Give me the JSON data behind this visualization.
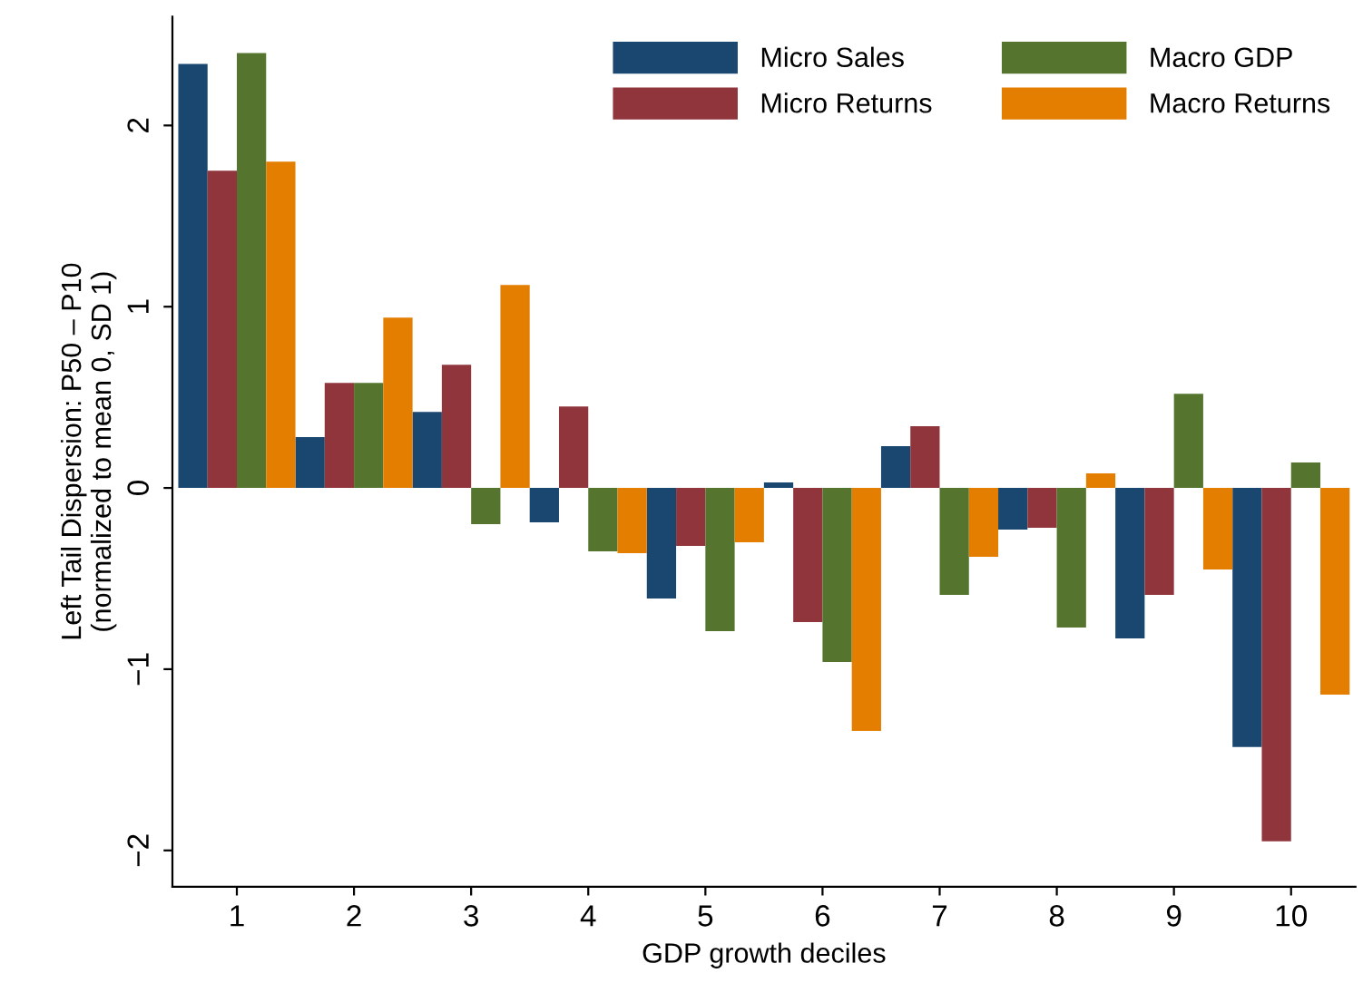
{
  "chart_data": {
    "type": "bar",
    "xlabel": "GDP growth deciles",
    "ylabel": "Left Tail Dispersion: P50 – P10\n(normalized to mean 0, SD 1)",
    "categories": [
      "1",
      "2",
      "3",
      "4",
      "5",
      "6",
      "7",
      "8",
      "9",
      "10"
    ],
    "series": [
      {
        "name": "Micro Sales",
        "color": "#1a476f",
        "values": [
          2.34,
          0.28,
          0.42,
          -0.19,
          -0.61,
          0.03,
          0.23,
          -0.23,
          -0.83,
          -1.43
        ]
      },
      {
        "name": "Micro Returns",
        "color": "#90353b",
        "values": [
          1.75,
          0.58,
          0.68,
          0.45,
          -0.32,
          -0.74,
          0.34,
          -0.22,
          -0.59,
          -1.95
        ]
      },
      {
        "name": "Macro GDP",
        "color": "#55752f",
        "values": [
          2.4,
          0.58,
          -0.2,
          -0.35,
          -0.79,
          -0.96,
          -0.59,
          -0.77,
          0.52,
          0.14
        ]
      },
      {
        "name": "Macro Returns",
        "color": "#e37e00",
        "values": [
          1.8,
          0.94,
          1.12,
          -0.36,
          -0.3,
          -1.34,
          -0.38,
          0.08,
          -0.45,
          -1.14
        ]
      }
    ],
    "ylim": [
      -2.2,
      2.6
    ],
    "yticks": [
      {
        "value": -2,
        "label": "−2"
      },
      {
        "value": -1,
        "label": "−1"
      },
      0,
      1,
      2
    ],
    "legend": "top right",
    "grid": false
  }
}
